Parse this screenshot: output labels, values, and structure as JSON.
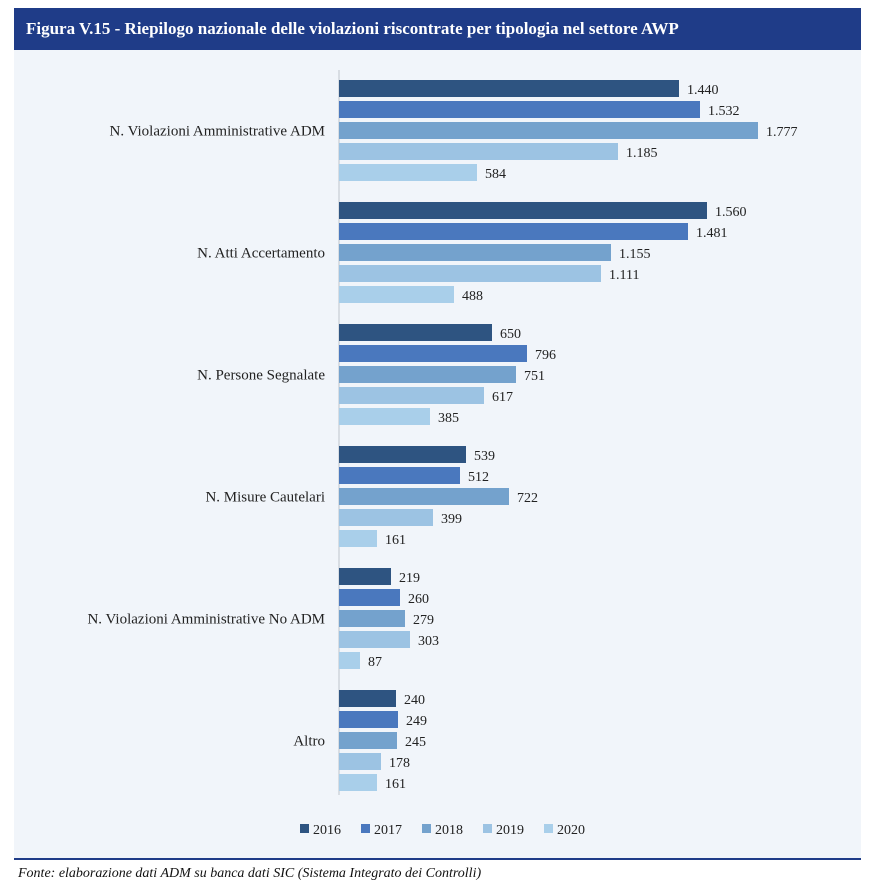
{
  "title": "Figura V.15 - Riepilogo nazionale delle violazioni riscontrate per tipologia nel settore AWP",
  "source": "Fonte: elaborazione dati ADM su banca dati SIC (Sistema Integrato dei Controlli)",
  "chart_data": {
    "type": "bar",
    "orientation": "horizontal",
    "categories": [
      "N. Violazioni Amministrative ADM",
      "N. Atti Accertamento",
      "N. Persone Segnalate",
      "N. Misure Cautelari",
      "N. Violazioni Amministrative No ADM",
      "Altro"
    ],
    "series": [
      {
        "name": "2016",
        "color": "#2e5481",
        "values": [
          1440,
          1560,
          650,
          539,
          219,
          240
        ],
        "labels": [
          "1.440",
          "1.560",
          "650",
          "539",
          "219",
          "240"
        ]
      },
      {
        "name": "2017",
        "color": "#4a78be",
        "values": [
          1532,
          1481,
          796,
          512,
          260,
          249
        ],
        "labels": [
          "1.532",
          "1.481",
          "796",
          "512",
          "260",
          "249"
        ]
      },
      {
        "name": "2018",
        "color": "#74a2cd",
        "values": [
          1777,
          1155,
          751,
          722,
          279,
          245
        ],
        "labels": [
          "1.777",
          "1.155",
          "751",
          "722",
          "279",
          "245"
        ]
      },
      {
        "name": "2019",
        "color": "#9cc3e3",
        "values": [
          1185,
          1111,
          617,
          399,
          303,
          178
        ],
        "labels": [
          "1.185",
          "1.111",
          "617",
          "399",
          "303",
          "178"
        ]
      },
      {
        "name": "2020",
        "color": "#a9cfea",
        "values": [
          584,
          488,
          385,
          161,
          87,
          161
        ],
        "labels": [
          "584",
          "488",
          "385",
          "161",
          "87",
          "161"
        ]
      }
    ],
    "xlim": [
      0,
      1777
    ],
    "grid": false,
    "legend": "bottom"
  }
}
